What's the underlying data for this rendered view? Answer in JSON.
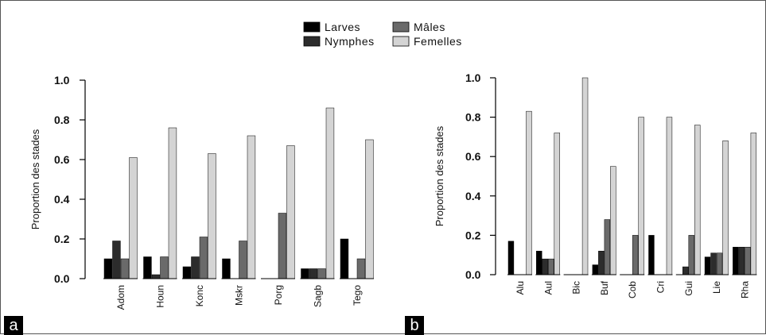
{
  "legend": {
    "items": [
      {
        "label": "Larves",
        "color": "#000000"
      },
      {
        "label": "Nymphes",
        "color": "#2c2c2c"
      },
      {
        "label": "Mâles",
        "color": "#6a6a6a"
      },
      {
        "label": "Femelles",
        "color": "#d4d4d4"
      }
    ]
  },
  "chart_data": [
    {
      "type": "bar",
      "panel_label": "a",
      "ylabel": "Proportion des stades",
      "ylim": [
        0,
        1.0
      ],
      "yticks": [
        "0.0",
        "0.2",
        "0.4",
        "0.6",
        "0.8",
        "1.0"
      ],
      "categories": [
        "Adom",
        "Houn",
        "Konc",
        "Mskr",
        "Porg",
        "Sagb",
        "Tego"
      ],
      "series": [
        {
          "name": "Larves",
          "values": [
            0.1,
            0.11,
            0.06,
            0.1,
            0.0,
            0.05,
            0.2
          ]
        },
        {
          "name": "Nymphes",
          "values": [
            0.19,
            0.02,
            0.11,
            0.0,
            0.0,
            0.05,
            0.0
          ]
        },
        {
          "name": "Mâles",
          "values": [
            0.1,
            0.11,
            0.21,
            0.19,
            0.33,
            0.05,
            0.1
          ]
        },
        {
          "name": "Femelles",
          "values": [
            0.61,
            0.76,
            0.63,
            0.72,
            0.67,
            0.86,
            0.7
          ]
        }
      ]
    },
    {
      "type": "bar",
      "panel_label": "b",
      "ylabel": "Proportion des stades",
      "ylim": [
        0,
        1.0
      ],
      "yticks": [
        "0.0",
        "0.2",
        "0.4",
        "0.6",
        "0.8",
        "1.0"
      ],
      "categories": [
        "Alu",
        "Aul",
        "Bic",
        "Buf",
        "Cob",
        "Cri",
        "Gui",
        "Lie",
        "Rha"
      ],
      "series": [
        {
          "name": "Larves",
          "values": [
            0.17,
            0.12,
            0.0,
            0.05,
            0.0,
            0.2,
            0.0,
            0.09,
            0.14
          ]
        },
        {
          "name": "Nymphes",
          "values": [
            0.0,
            0.08,
            0.0,
            0.12,
            0.0,
            0.0,
            0.04,
            0.11,
            0.14
          ]
        },
        {
          "name": "Mâles",
          "values": [
            0.0,
            0.08,
            0.0,
            0.28,
            0.2,
            0.0,
            0.2,
            0.11,
            0.14
          ]
        },
        {
          "name": "Femelles",
          "values": [
            0.83,
            0.72,
            1.0,
            0.55,
            0.8,
            0.8,
            0.76,
            0.68,
            0.72
          ]
        }
      ]
    }
  ]
}
